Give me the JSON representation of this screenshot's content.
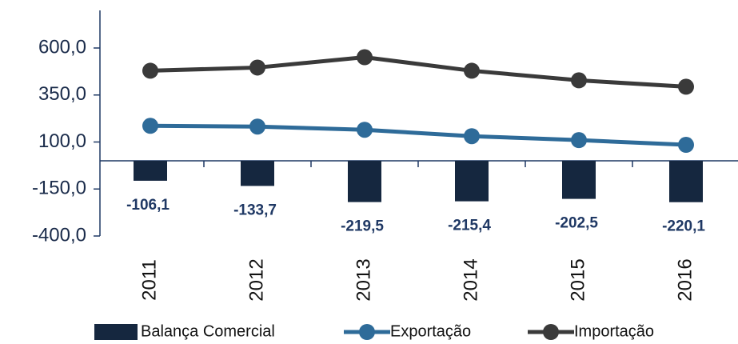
{
  "chart_data": {
    "type": "bar-line",
    "categories": [
      "2011",
      "2012",
      "2013",
      "2014",
      "2015",
      "2016"
    ],
    "series": [
      {
        "name": "Balança Comercial",
        "type": "bar",
        "color": "#15273f",
        "values": [
          -106.1,
          -133.7,
          -219.5,
          -215.4,
          -202.5,
          -220.1
        ],
        "value_labels": [
          "-106,1",
          "-133,7",
          "-219,5",
          "-215,4",
          "-202,5",
          "-220,1"
        ]
      },
      {
        "name": "Exportação",
        "type": "line",
        "color": "#2e6b99",
        "values": [
          186,
          182,
          165,
          131,
          110,
          85
        ]
      },
      {
        "name": "Importação",
        "type": "line",
        "color": "#3a3a3a",
        "values": [
          479,
          496,
          551,
          479,
          428,
          394
        ]
      }
    ],
    "ylim": [
      -400,
      800
    ],
    "yticks": [
      {
        "value": 600,
        "label": "600,0"
      },
      {
        "value": 350,
        "label": "350,0"
      },
      {
        "value": 100,
        "label": "100,0"
      },
      {
        "value": -150,
        "label": "-150,0"
      },
      {
        "value": -400,
        "label": "-400,0"
      }
    ],
    "legend": "bottom"
  }
}
